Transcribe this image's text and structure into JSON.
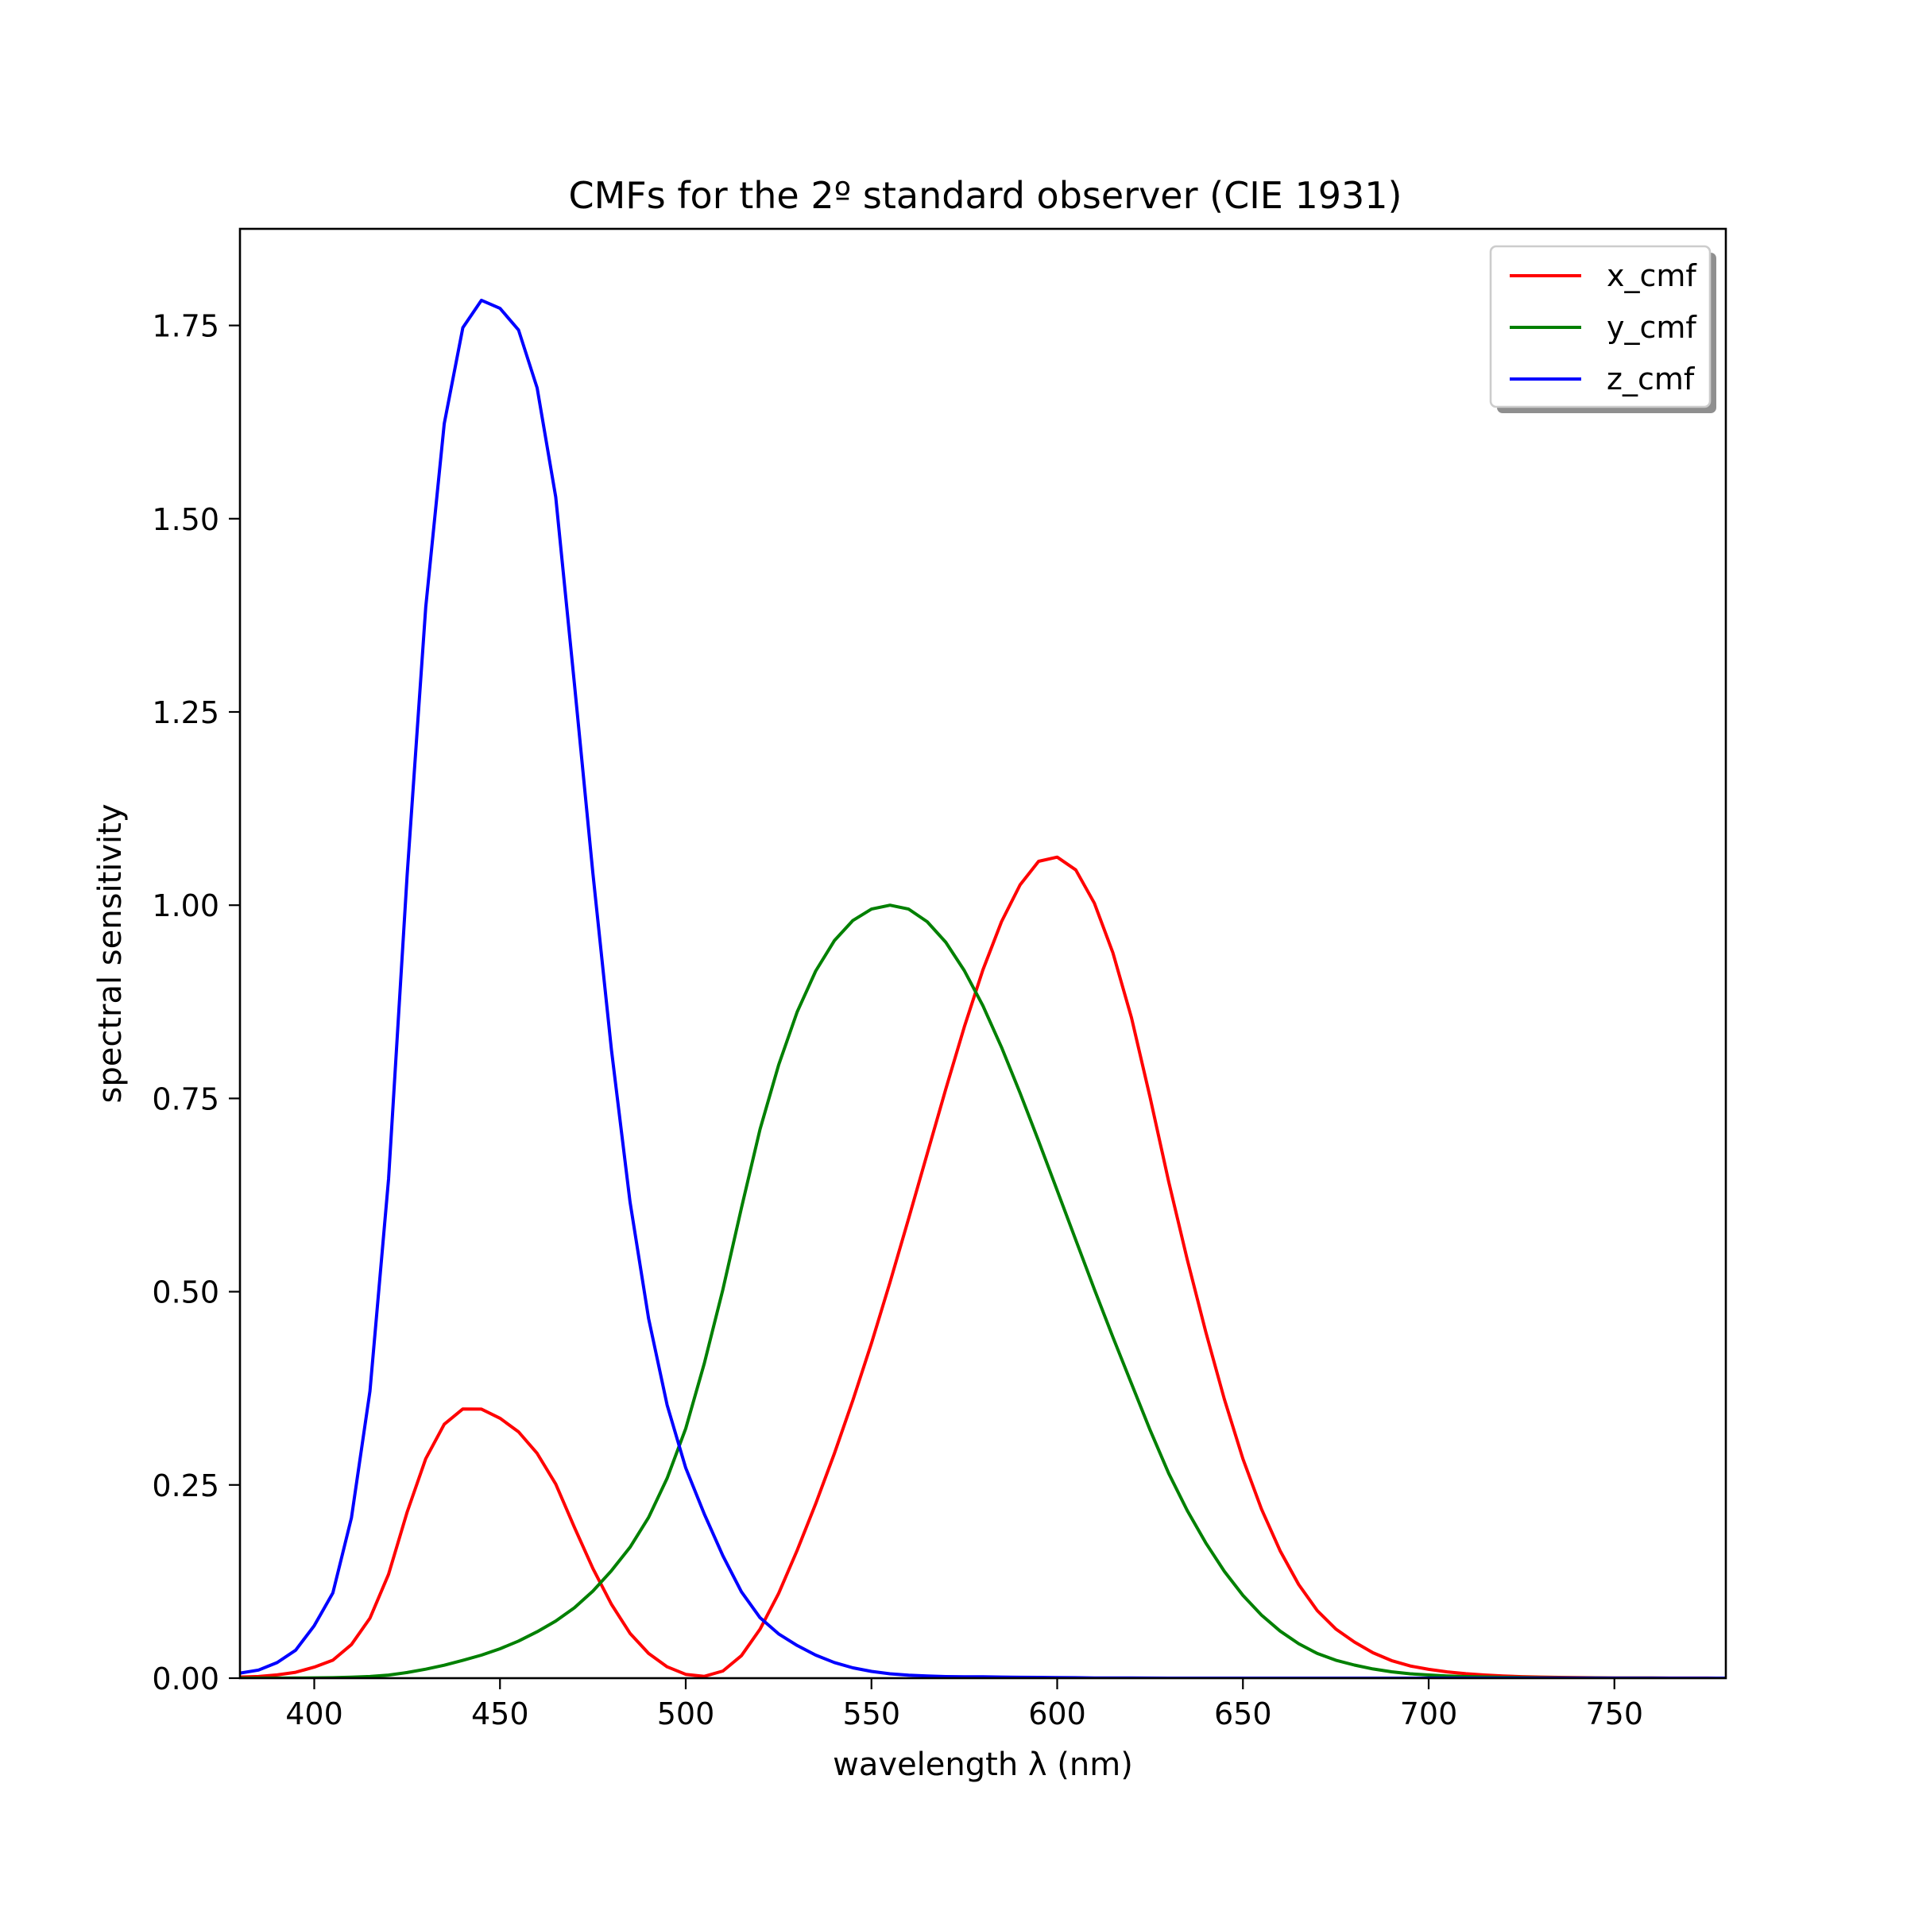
{
  "chart_data": {
    "type": "line",
    "title": "CMFs for the 2º standard observer (CIE 1931)",
    "xlabel": "wavelength λ (nm)",
    "ylabel": "spectral sensitivity",
    "xlim": [
      380,
      780
    ],
    "ylim": [
      0,
      1.875
    ],
    "grid": false,
    "legend": {
      "placement": "top-right"
    },
    "x_ticks": [
      {
        "value": 400,
        "label": "400"
      },
      {
        "value": 450,
        "label": "450"
      },
      {
        "value": 500,
        "label": "500"
      },
      {
        "value": 550,
        "label": "550"
      },
      {
        "value": 600,
        "label": "600"
      },
      {
        "value": 650,
        "label": "650"
      },
      {
        "value": 700,
        "label": "700"
      },
      {
        "value": 750,
        "label": "750"
      }
    ],
    "y_ticks": [
      {
        "value": 0.0,
        "label": "0.00"
      },
      {
        "value": 0.25,
        "label": "0.25"
      },
      {
        "value": 0.5,
        "label": "0.50"
      },
      {
        "value": 0.75,
        "label": "0.75"
      },
      {
        "value": 1.0,
        "label": "1.00"
      },
      {
        "value": 1.25,
        "label": "1.25"
      },
      {
        "value": 1.5,
        "label": "1.50"
      },
      {
        "value": 1.75,
        "label": "1.75"
      }
    ],
    "x": [
      380,
      385,
      390,
      395,
      400,
      405,
      410,
      415,
      420,
      425,
      430,
      435,
      440,
      445,
      450,
      455,
      460,
      465,
      470,
      475,
      480,
      485,
      490,
      495,
      500,
      505,
      510,
      515,
      520,
      525,
      530,
      535,
      540,
      545,
      550,
      555,
      560,
      565,
      570,
      575,
      580,
      585,
      590,
      595,
      600,
      605,
      610,
      615,
      620,
      625,
      630,
      635,
      640,
      645,
      650,
      655,
      660,
      665,
      670,
      675,
      680,
      685,
      690,
      695,
      700,
      705,
      710,
      715,
      720,
      725,
      730,
      735,
      740,
      745,
      750,
      755,
      760,
      765,
      770,
      775,
      780
    ],
    "series": [
      {
        "name": "x_cmf",
        "color": "#ff0000",
        "values": [
          0.0014,
          0.0022,
          0.0042,
          0.0076,
          0.0143,
          0.0232,
          0.0435,
          0.0776,
          0.1344,
          0.2148,
          0.2839,
          0.3285,
          0.3483,
          0.3481,
          0.3362,
          0.3187,
          0.2908,
          0.2511,
          0.1954,
          0.1421,
          0.0956,
          0.058,
          0.032,
          0.0147,
          0.0049,
          0.0024,
          0.0093,
          0.0291,
          0.0633,
          0.1096,
          0.1655,
          0.2257,
          0.2904,
          0.3597,
          0.4334,
          0.5121,
          0.5945,
          0.6784,
          0.7621,
          0.8425,
          0.9163,
          0.9786,
          1.0263,
          1.0567,
          1.0622,
          1.0456,
          1.0026,
          0.9384,
          0.8544,
          0.7514,
          0.6424,
          0.5419,
          0.4479,
          0.3608,
          0.2835,
          0.2187,
          0.1649,
          0.1212,
          0.0874,
          0.0636,
          0.0468,
          0.0329,
          0.0227,
          0.0158,
          0.0114,
          0.0081,
          0.0058,
          0.0041,
          0.0029,
          0.002,
          0.0014,
          0.001,
          0.0007,
          0.0005,
          0.0003,
          0.0002,
          0.0002,
          0.0001,
          0.0001,
          0.0001,
          0.0
        ]
      },
      {
        "name": "y_cmf",
        "color": "#008000",
        "values": [
          0.0,
          0.0001,
          0.0001,
          0.0002,
          0.0004,
          0.0006,
          0.0012,
          0.0022,
          0.004,
          0.0073,
          0.0116,
          0.0168,
          0.023,
          0.0298,
          0.038,
          0.048,
          0.06,
          0.0739,
          0.091,
          0.1126,
          0.139,
          0.1693,
          0.208,
          0.2586,
          0.323,
          0.4073,
          0.503,
          0.6082,
          0.71,
          0.7932,
          0.862,
          0.9149,
          0.954,
          0.9803,
          0.995,
          1.0,
          0.995,
          0.9786,
          0.952,
          0.9154,
          0.87,
          0.8163,
          0.757,
          0.6949,
          0.631,
          0.5668,
          0.503,
          0.4412,
          0.381,
          0.321,
          0.265,
          0.217,
          0.175,
          0.1382,
          0.107,
          0.0816,
          0.061,
          0.0446,
          0.032,
          0.0232,
          0.017,
          0.0119,
          0.0082,
          0.0057,
          0.0041,
          0.0029,
          0.0021,
          0.0015,
          0.001,
          0.0007,
          0.0005,
          0.0004,
          0.0002,
          0.0002,
          0.0001,
          0.0001,
          0.0001,
          0.0,
          0.0,
          0.0,
          0.0
        ]
      },
      {
        "name": "z_cmf",
        "color": "#0000ff",
        "values": [
          0.0065,
          0.0105,
          0.0201,
          0.0362,
          0.0679,
          0.1102,
          0.2074,
          0.3713,
          0.6456,
          1.0391,
          1.3856,
          1.623,
          1.7471,
          1.7826,
          1.7721,
          1.7441,
          1.6692,
          1.5281,
          1.2876,
          1.0419,
          0.813,
          0.6162,
          0.4652,
          0.3533,
          0.272,
          0.2123,
          0.1582,
          0.1117,
          0.0782,
          0.0573,
          0.0422,
          0.0298,
          0.0203,
          0.0134,
          0.0087,
          0.0057,
          0.0039,
          0.0028,
          0.0021,
          0.0018,
          0.0017,
          0.0014,
          0.0011,
          0.001,
          0.0008,
          0.0006,
          0.0003,
          0.0002,
          0.0002,
          0.0001,
          0.0,
          0.0,
          0.0,
          0.0,
          0.0,
          0.0,
          0.0,
          0.0,
          0.0,
          0.0,
          0.0,
          0.0,
          0.0,
          0.0,
          0.0,
          0.0,
          0.0,
          0.0,
          0.0,
          0.0,
          0.0,
          0.0,
          0.0,
          0.0,
          0.0,
          0.0,
          0.0,
          0.0,
          0.0,
          0.0,
          0.0
        ]
      }
    ]
  }
}
